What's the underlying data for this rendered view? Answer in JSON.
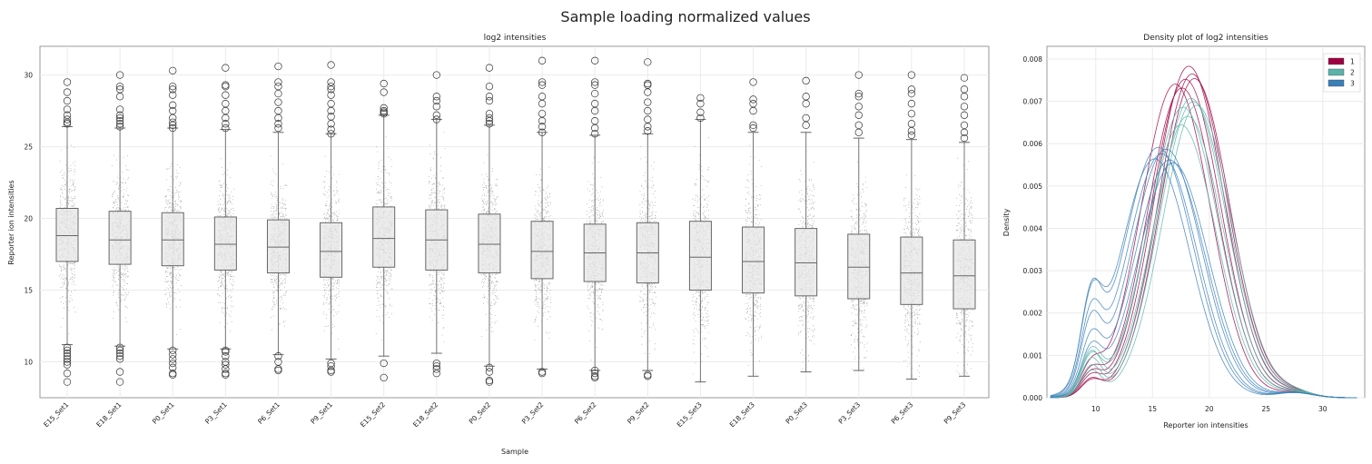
{
  "suptitle": "Sample loading normalized values",
  "chart_data": [
    {
      "type": "box",
      "title": "log2 intensities",
      "xlabel": "Sample",
      "ylabel": "Reporter ion intensities",
      "ylim": [
        7.5,
        32.0
      ],
      "yticks": [
        10,
        15,
        20,
        25,
        30
      ],
      "grid": true,
      "box_color": "#e5e5e5",
      "categories": [
        "E15_Set1",
        "E18_Set1",
        "P0_Set1",
        "P3_Set1",
        "P6_Set1",
        "P9_Set1",
        "E15_Set2",
        "E18_Set2",
        "P0_Set2",
        "P3_Set2",
        "P6_Set2",
        "P9_Set2",
        "E15_Set3",
        "E18_Set3",
        "P0_Set3",
        "P3_Set3",
        "P6_Set3",
        "P9_Set3"
      ],
      "boxes": [
        {
          "q1": 17.0,
          "median": 18.8,
          "q3": 20.7,
          "whislo": 11.2,
          "whishi": 26.4,
          "outliers": [
            29.5,
            28.8,
            28.2,
            27.6,
            27.2,
            26.9,
            26.7,
            26.6,
            11.0,
            10.8,
            10.6,
            10.4,
            10.2,
            10.0,
            9.8,
            9.2,
            8.6
          ]
        },
        {
          "q1": 16.8,
          "median": 18.5,
          "q3": 20.5,
          "whislo": 11.1,
          "whishi": 26.3,
          "outliers": [
            30.0,
            29.2,
            29.0,
            28.5,
            27.6,
            27.2,
            27.0,
            26.8,
            26.6,
            26.4,
            11.0,
            10.8,
            10.6,
            10.4,
            10.2,
            9.3,
            8.6
          ]
        },
        {
          "q1": 16.7,
          "median": 18.5,
          "q3": 20.4,
          "whislo": 10.9,
          "whishi": 26.3,
          "outliers": [
            30.3,
            29.2,
            29.0,
            28.6,
            27.9,
            27.5,
            27.0,
            26.7,
            26.5,
            26.3,
            10.8,
            10.5,
            10.2,
            9.9,
            9.6,
            9.2,
            9.1
          ]
        },
        {
          "q1": 16.4,
          "median": 18.2,
          "q3": 20.1,
          "whislo": 10.9,
          "whishi": 26.2,
          "outliers": [
            30.5,
            29.3,
            29.2,
            28.6,
            28.0,
            27.5,
            27.0,
            26.6,
            26.3,
            10.8,
            10.7,
            10.4,
            10.0,
            9.8,
            9.5,
            9.2,
            9.1
          ]
        },
        {
          "q1": 16.2,
          "median": 18.0,
          "q3": 19.9,
          "whislo": 10.5,
          "whishi": 26.0,
          "outliers": [
            30.6,
            29.5,
            29.2,
            28.7,
            28.1,
            27.5,
            27.0,
            26.6,
            26.3,
            10.4,
            10.0,
            9.5,
            9.4
          ]
        },
        {
          "q1": 15.9,
          "median": 17.7,
          "q3": 19.7,
          "whislo": 10.2,
          "whishi": 25.9,
          "outliers": [
            30.7,
            29.5,
            29.2,
            29.0,
            28.6,
            28.0,
            27.5,
            27.1,
            26.6,
            26.2,
            25.9,
            9.9,
            9.7,
            9.4,
            9.3
          ]
        },
        {
          "q1": 16.6,
          "median": 18.6,
          "q3": 20.8,
          "whislo": 10.4,
          "whishi": 27.2,
          "outliers": [
            29.4,
            28.8,
            27.7,
            27.5,
            27.4,
            27.3,
            9.9,
            8.9
          ]
        },
        {
          "q1": 16.4,
          "median": 18.5,
          "q3": 20.6,
          "whislo": 10.6,
          "whishi": 26.9,
          "outliers": [
            30.0,
            28.5,
            28.2,
            27.8,
            27.2,
            26.9,
            9.9,
            9.7,
            9.5,
            9.2
          ]
        },
        {
          "q1": 16.2,
          "median": 18.2,
          "q3": 20.3,
          "whislo": 9.7,
          "whishi": 26.5,
          "outliers": [
            30.5,
            29.2,
            28.5,
            28.2,
            27.3,
            27.0,
            26.8,
            26.6,
            9.6,
            9.3,
            8.7,
            8.6
          ]
        },
        {
          "q1": 15.8,
          "median": 17.7,
          "q3": 19.8,
          "whislo": 9.5,
          "whishi": 26.0,
          "outliers": [
            31.0,
            29.5,
            29.3,
            28.5,
            28.0,
            27.3,
            26.8,
            26.4,
            26.0,
            9.3,
            9.2
          ]
        },
        {
          "q1": 15.6,
          "median": 17.6,
          "q3": 19.6,
          "whislo": 9.4,
          "whishi": 25.8,
          "outliers": [
            31.0,
            29.5,
            29.3,
            28.7,
            28.0,
            27.5,
            26.8,
            26.3,
            25.9,
            9.4,
            9.2,
            9.0,
            8.9
          ]
        },
        {
          "q1": 15.5,
          "median": 17.6,
          "q3": 19.7,
          "whislo": 9.4,
          "whishi": 25.9,
          "outliers": [
            30.9,
            29.4,
            29.3,
            28.8,
            28.1,
            27.5,
            26.9,
            26.4,
            26.1,
            9.1,
            9.0
          ]
        },
        {
          "q1": 15.0,
          "median": 17.3,
          "q3": 19.8,
          "whislo": 8.6,
          "whishi": 26.9,
          "outliers": [
            28.4,
            28.0,
            27.4,
            27.0
          ]
        },
        {
          "q1": 14.8,
          "median": 17.0,
          "q3": 19.4,
          "whislo": 9.0,
          "whishi": 26.0,
          "outliers": [
            29.5,
            28.3,
            28.0,
            27.5,
            26.5,
            26.3
          ]
        },
        {
          "q1": 14.6,
          "median": 16.9,
          "q3": 19.3,
          "whislo": 9.3,
          "whishi": 26.0,
          "outliers": [
            29.6,
            28.5,
            28.0,
            27.0,
            26.5
          ]
        },
        {
          "q1": 14.4,
          "median": 16.6,
          "q3": 18.9,
          "whislo": 9.4,
          "whishi": 25.6,
          "outliers": [
            30.0,
            28.7,
            28.5,
            27.8,
            27.2,
            26.5,
            26.0
          ]
        },
        {
          "q1": 14.0,
          "median": 16.2,
          "q3": 18.7,
          "whislo": 8.8,
          "whishi": 25.5,
          "outliers": [
            30.0,
            29.0,
            28.7,
            28.0,
            27.3,
            26.6,
            26.1,
            25.8
          ]
        },
        {
          "q1": 13.7,
          "median": 16.0,
          "q3": 18.5,
          "whislo": 9.0,
          "whishi": 25.3,
          "outliers": [
            29.8,
            29.0,
            28.5,
            27.8,
            27.2,
            26.5,
            26.0,
            25.6
          ]
        }
      ]
    },
    {
      "type": "line",
      "title": "Density plot of log2 intensities",
      "xlabel": "Reporter ion intensities",
      "ylabel": "Density",
      "xlim": [
        5.7,
        33.7
      ],
      "ylim": [
        0.0,
        0.0083
      ],
      "xticks": [
        10,
        15,
        20,
        25,
        30
      ],
      "yticks": [
        0.0,
        0.001,
        0.002,
        0.003,
        0.004,
        0.005,
        0.006,
        0.007,
        0.008
      ],
      "grid": true,
      "legend": {
        "position": "top-right",
        "entries": [
          {
            "label": "1",
            "color": "#9e0142"
          },
          {
            "label": "2",
            "color": "#5ab4ac"
          },
          {
            "label": "3",
            "color": "#3a7fb8"
          }
        ]
      },
      "curves": [
        {
          "group": "1",
          "peak_x": 18.2,
          "peak_y": 0.0079,
          "low_peak_y": 0.00045
        },
        {
          "group": "1",
          "peak_x": 18.5,
          "peak_y": 0.0077,
          "low_peak_y": 0.00035
        },
        {
          "group": "1",
          "peak_x": 17.9,
          "peak_y": 0.0076,
          "low_peak_y": 0.0005
        },
        {
          "group": "1",
          "peak_x": 17.6,
          "peak_y": 0.0074,
          "low_peak_y": 0.00055
        },
        {
          "group": "1",
          "peak_x": 17.0,
          "peak_y": 0.0075,
          "low_peak_y": 0.0006
        },
        {
          "group": "1",
          "peak_x": 18.7,
          "peak_y": 0.0076,
          "low_peak_y": 0.0004
        },
        {
          "group": "2",
          "peak_x": 18.6,
          "peak_y": 0.0071,
          "low_peak_y": 0.0007
        },
        {
          "group": "2",
          "peak_x": 18.4,
          "peak_y": 0.0072,
          "low_peak_y": 0.00085
        },
        {
          "group": "2",
          "peak_x": 18.1,
          "peak_y": 0.0068,
          "low_peak_y": 0.001
        },
        {
          "group": "2",
          "peak_x": 17.7,
          "peak_y": 0.007,
          "low_peak_y": 0.0009
        },
        {
          "group": "2",
          "peak_x": 18.9,
          "peak_y": 0.007,
          "low_peak_y": 0.0006
        },
        {
          "group": "2",
          "peak_x": 17.5,
          "peak_y": 0.0066,
          "low_peak_y": 0.001
        },
        {
          "group": "3",
          "peak_x": 15.5,
          "peak_y": 0.0062,
          "low_peak_y": 0.0019
        },
        {
          "group": "3",
          "peak_x": 15.8,
          "peak_y": 0.006,
          "low_peak_y": 0.0016
        },
        {
          "group": "3",
          "peak_x": 16.2,
          "peak_y": 0.0061,
          "low_peak_y": 0.0015
        },
        {
          "group": "3",
          "peak_x": 15.2,
          "peak_y": 0.0059,
          "low_peak_y": 0.0017
        },
        {
          "group": "3",
          "peak_x": 16.5,
          "peak_y": 0.0058,
          "low_peak_y": 0.0012
        },
        {
          "group": "3",
          "peak_x": 16.8,
          "peak_y": 0.0057,
          "low_peak_y": 0.001
        }
      ]
    }
  ]
}
